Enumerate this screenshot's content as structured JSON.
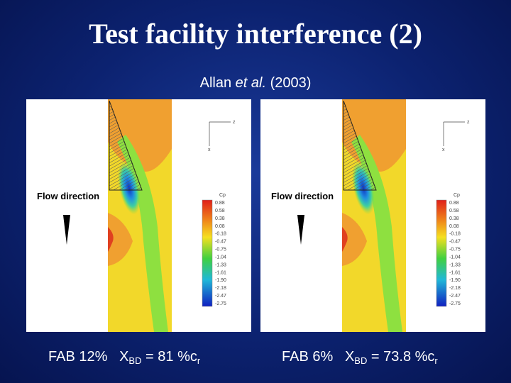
{
  "header": {
    "title": "Test facility interference (2)"
  },
  "subtitle": {
    "author": "Allan",
    "etal": "et al.",
    "year": "(2003)"
  },
  "panels": [
    {
      "flow_label": "Flow direction",
      "axis_z": "z",
      "axis_x": "x",
      "colorbar_title": "Cp",
      "colorbar_labels": [
        "0.88",
        "0.58",
        "0.38",
        "0.08",
        "-0.18",
        "-0.47",
        "-0.75",
        "-1.04",
        "-1.33",
        "-1.61",
        "-1.90",
        "-2.18",
        "-2.47",
        "-2.75"
      ],
      "caption": {
        "config": "FAB 12%",
        "symbol": "X",
        "symbol_sub": "BD",
        "value": "= 81 %c",
        "value_sub": "r"
      }
    },
    {
      "flow_label": "Flow direction",
      "axis_z": "z",
      "axis_x": "x",
      "colorbar_title": "Cp",
      "colorbar_labels": [
        "0.88",
        "0.58",
        "0.38",
        "0.08",
        "-0.18",
        "-0.47",
        "-0.75",
        "-1.04",
        "-1.33",
        "-1.61",
        "-1.90",
        "-2.18",
        "-2.47",
        "-2.75"
      ],
      "caption": {
        "config": "FAB 6%",
        "symbol": "X",
        "symbol_sub": "BD",
        "value": "= 73.8 %c",
        "value_sub": "r"
      }
    }
  ]
}
